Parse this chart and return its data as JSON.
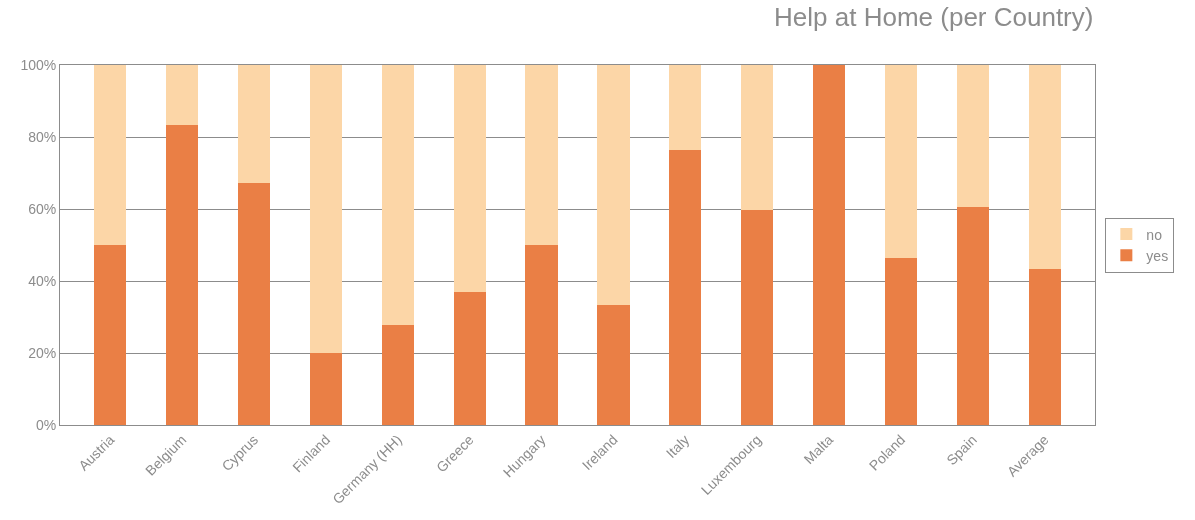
{
  "chart_data": {
    "type": "bar",
    "title": "Help at Home (per Country)",
    "stacked": true,
    "categories": [
      "Austria",
      "Belgium",
      "Cyprus",
      "Finland",
      "Germany (HH)",
      "Greece",
      "Hungary",
      "Ireland",
      "Italy",
      "Luxembourg",
      "Malta",
      "Poland",
      "Spain",
      "Average"
    ],
    "series": [
      {
        "name": "yes",
        "color": "#ea7f45",
        "values": [
          50,
          83.3,
          67.1,
          20,
          27.8,
          36.9,
          50,
          33.2,
          76.4,
          59.6,
          100,
          46.4,
          60.6,
          43.3
        ]
      },
      {
        "name": "no",
        "color": "#fcd6a7",
        "values": [
          50,
          16.7,
          32.9,
          80,
          72.2,
          63.1,
          50,
          66.8,
          23.6,
          40.4,
          0,
          53.6,
          39.4,
          56.7
        ]
      }
    ],
    "ylim": [
      0,
      100
    ],
    "yticks": [
      {
        "value": 0,
        "label": "0%"
      },
      {
        "value": 20,
        "label": "20%"
      },
      {
        "value": 40,
        "label": "40%"
      },
      {
        "value": 60,
        "label": "60%"
      },
      {
        "value": 80,
        "label": "80%"
      },
      {
        "value": 100,
        "label": "100%"
      }
    ],
    "grid": "y",
    "legend": "right"
  }
}
